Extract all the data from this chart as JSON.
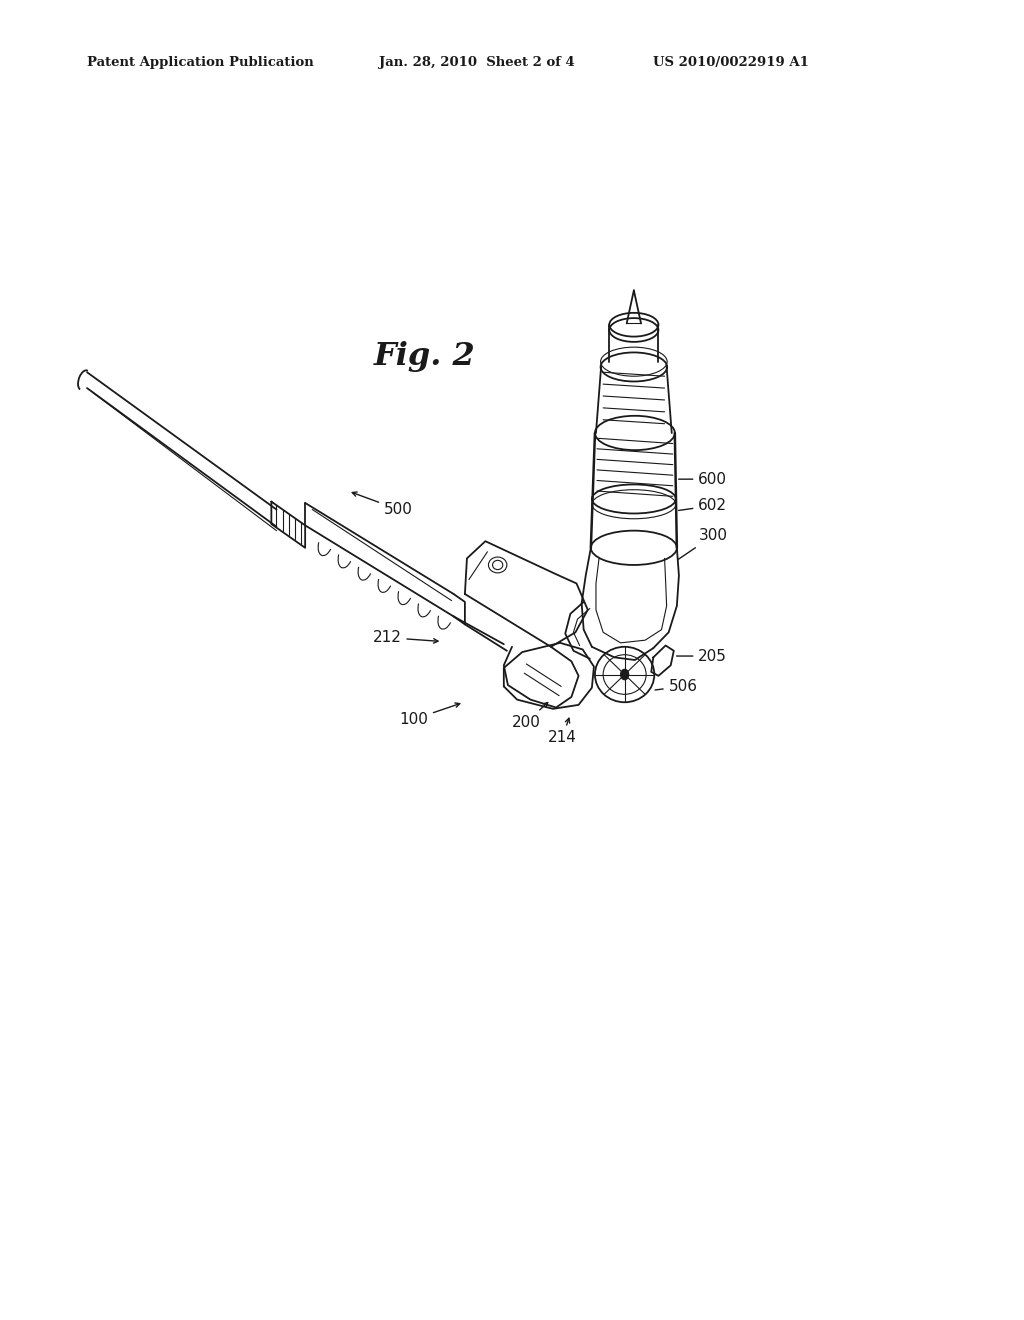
{
  "bg_color": "#ffffff",
  "line_color": "#1a1a1a",
  "fig_width": 10.24,
  "fig_height": 13.2,
  "dpi": 100,
  "header_text1": "Patent Application Publication",
  "header_text2": "Jan. 28, 2010  Sheet 2 of 4",
  "header_text3": "US 2010/0022919 A1",
  "fig_label": "Fig. 2"
}
